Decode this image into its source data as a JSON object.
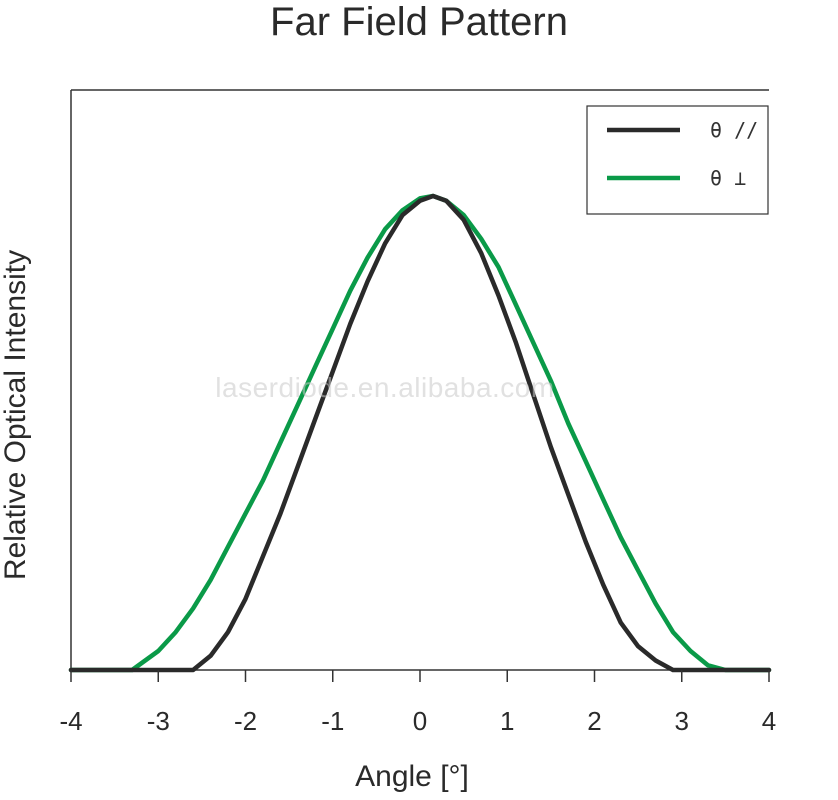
{
  "chart_data": {
    "type": "line",
    "title": "Far Field Pattern",
    "xlabel": "Angle [°]",
    "ylabel": "Relative Optical Intensity",
    "xlim": [
      -4,
      4
    ],
    "ylim": [
      0,
      1.0
    ],
    "x_ticks": [
      "-4",
      "-3",
      "-2",
      "-1",
      "0",
      "1",
      "2",
      "3",
      "4"
    ],
    "grid": false,
    "legend_position": "top-right",
    "series": [
      {
        "name": "θ //",
        "color": "#2a2a2a",
        "x": [
          -4.0,
          -2.6,
          -2.4,
          -2.2,
          -2.0,
          -1.8,
          -1.6,
          -1.4,
          -1.2,
          -1.0,
          -0.8,
          -0.6,
          -0.4,
          -0.2,
          0.0,
          0.15,
          0.3,
          0.5,
          0.7,
          0.9,
          1.1,
          1.3,
          1.5,
          1.7,
          1.9,
          2.1,
          2.3,
          2.5,
          2.7,
          2.9,
          4.0
        ],
        "y": [
          0.0,
          0.0,
          0.03,
          0.08,
          0.15,
          0.24,
          0.33,
          0.43,
          0.53,
          0.63,
          0.73,
          0.82,
          0.9,
          0.96,
          0.99,
          1.0,
          0.99,
          0.95,
          0.88,
          0.79,
          0.69,
          0.58,
          0.47,
          0.37,
          0.27,
          0.18,
          0.1,
          0.05,
          0.02,
          0.0,
          0.0
        ]
      },
      {
        "name": "θ ⊥",
        "color": "#0a9a48",
        "x": [
          -4.0,
          -3.3,
          -3.0,
          -2.8,
          -2.6,
          -2.4,
          -2.2,
          -2.0,
          -1.8,
          -1.6,
          -1.4,
          -1.2,
          -1.0,
          -0.8,
          -0.6,
          -0.4,
          -0.2,
          0.0,
          0.15,
          0.3,
          0.5,
          0.7,
          0.9,
          1.1,
          1.3,
          1.5,
          1.7,
          1.9,
          2.1,
          2.3,
          2.5,
          2.7,
          2.9,
          3.1,
          3.3,
          3.5,
          4.0
        ],
        "y": [
          0.0,
          0.0,
          0.04,
          0.08,
          0.13,
          0.19,
          0.26,
          0.33,
          0.4,
          0.48,
          0.56,
          0.64,
          0.72,
          0.8,
          0.87,
          0.93,
          0.97,
          0.995,
          1.0,
          0.99,
          0.96,
          0.91,
          0.85,
          0.77,
          0.69,
          0.61,
          0.52,
          0.44,
          0.36,
          0.28,
          0.21,
          0.14,
          0.08,
          0.04,
          0.01,
          0.0,
          0.0
        ]
      }
    ]
  },
  "watermark": "laserdiode.en.alibaba.com"
}
